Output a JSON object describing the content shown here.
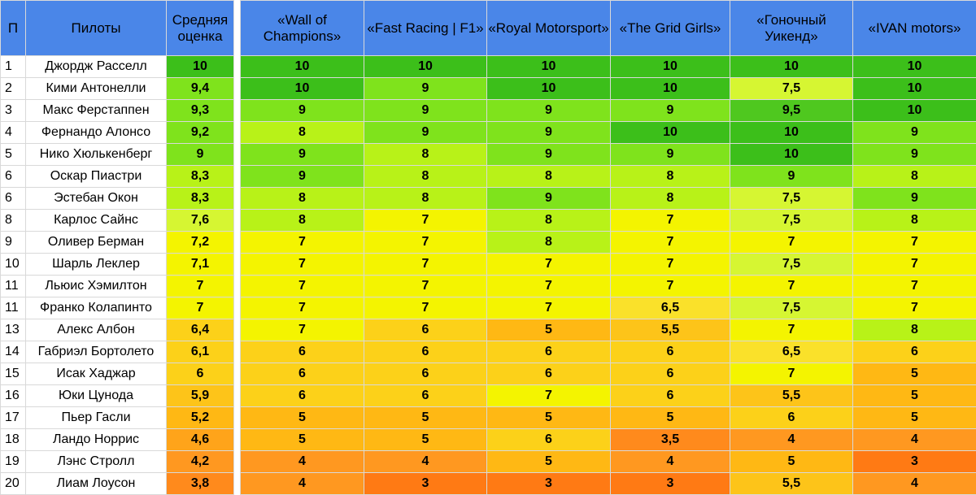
{
  "headers": {
    "pos": "П",
    "pilots": "Пилоты",
    "avg": "Средняя оценка",
    "teams": [
      "«Wall of Champions»",
      "«Fast Racing | F1»",
      "«Royal Motorsport»",
      "«The Grid Girls»",
      "«Гоночный Уикенд»",
      "«IVAN motors»"
    ]
  },
  "rows": [
    {
      "pos": "1",
      "name": "Джордж Расселл",
      "avg": "10",
      "scores": [
        "10",
        "10",
        "10",
        "10",
        "10",
        "10"
      ]
    },
    {
      "pos": "2",
      "name": "Кими Антонелли",
      "avg": "9,4",
      "scores": [
        "10",
        "9",
        "10",
        "10",
        "7,5",
        "10"
      ]
    },
    {
      "pos": "3",
      "name": "Макс Ферстаппен",
      "avg": "9,3",
      "scores": [
        "9",
        "9",
        "9",
        "9",
        "9,5",
        "10"
      ]
    },
    {
      "pos": "4",
      "name": "Фернандо Алонсо",
      "avg": "9,2",
      "scores": [
        "8",
        "9",
        "9",
        "10",
        "10",
        "9"
      ]
    },
    {
      "pos": "5",
      "name": "Нико Хюлькенберг",
      "avg": "9",
      "scores": [
        "9",
        "8",
        "9",
        "9",
        "10",
        "9"
      ]
    },
    {
      "pos": "6",
      "name": "Оскар Пиастри",
      "avg": "8,3",
      "scores": [
        "9",
        "8",
        "8",
        "8",
        "9",
        "8"
      ]
    },
    {
      "pos": "6",
      "name": "Эстебан Окон",
      "avg": "8,3",
      "scores": [
        "8",
        "8",
        "9",
        "8",
        "7,5",
        "9"
      ]
    },
    {
      "pos": "8",
      "name": "Карлос Сайнс",
      "avg": "7,6",
      "scores": [
        "8",
        "7",
        "8",
        "7",
        "7,5",
        "8"
      ]
    },
    {
      "pos": "9",
      "name": "Оливер Берман",
      "avg": "7,2",
      "scores": [
        "7",
        "7",
        "8",
        "7",
        "7",
        "7"
      ]
    },
    {
      "pos": "10",
      "name": "Шарль Леклер",
      "avg": "7,1",
      "scores": [
        "7",
        "7",
        "7",
        "7",
        "7,5",
        "7"
      ]
    },
    {
      "pos": "11",
      "name": "Льюис Хэмилтон",
      "avg": "7",
      "scores": [
        "7",
        "7",
        "7",
        "7",
        "7",
        "7"
      ]
    },
    {
      "pos": "11",
      "name": "Франко Колапинто",
      "avg": "7",
      "scores": [
        "7",
        "7",
        "7",
        "6,5",
        "7,5",
        "7"
      ]
    },
    {
      "pos": "13",
      "name": "Алекс Албон",
      "avg": "6,4",
      "scores": [
        "7",
        "6",
        "5",
        "5,5",
        "7",
        "8"
      ]
    },
    {
      "pos": "14",
      "name": "Габриэл Бортолето",
      "avg": "6,1",
      "scores": [
        "6",
        "6",
        "6",
        "6",
        "6,5",
        "6"
      ]
    },
    {
      "pos": "15",
      "name": "Исак Хаджар",
      "avg": "6",
      "scores": [
        "6",
        "6",
        "6",
        "6",
        "7",
        "5"
      ]
    },
    {
      "pos": "16",
      "name": "Юки Цунода",
      "avg": "5,9",
      "scores": [
        "6",
        "6",
        "7",
        "6",
        "5,5",
        "5"
      ]
    },
    {
      "pos": "17",
      "name": "Пьер Гасли",
      "avg": "5,2",
      "scores": [
        "5",
        "5",
        "5",
        "5",
        "6",
        "5"
      ]
    },
    {
      "pos": "18",
      "name": "Ландо Норрис",
      "avg": "4,6",
      "scores": [
        "5",
        "5",
        "6",
        "3,5",
        "4",
        "4"
      ]
    },
    {
      "pos": "19",
      "name": "Лэнс Стролл",
      "avg": "4,2",
      "scores": [
        "4",
        "4",
        "5",
        "4",
        "5",
        "3"
      ]
    },
    {
      "pos": "20",
      "name": "Лиам Лоусон",
      "avg": "3,8",
      "scores": [
        "4",
        "3",
        "3",
        "3",
        "5,5",
        "4"
      ]
    }
  ]
}
